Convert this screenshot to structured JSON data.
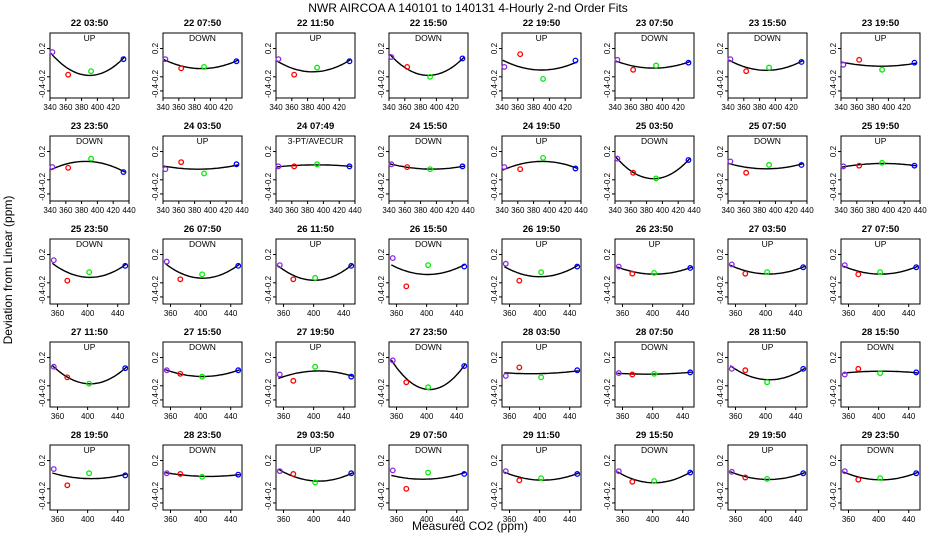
{
  "title": "NWR   AIRCOA A   140101 to 140131   4-Hourly 2-nd Order Fits",
  "xlabel": "Measured CO2 (ppm)",
  "ylabel": "Deviation from Linear (ppm)",
  "colors": {
    "curve": "#000000",
    "low": "#8a2be2",
    "mid_low": "#ff0000",
    "mid": "#00ee00",
    "high": "#0000ff"
  },
  "chart_data": {
    "type": "scatter",
    "ylim": [
      -0.5,
      0.42
    ],
    "yticks": [
      0.2,
      -0.2,
      -0.4
    ],
    "rows": [
      {
        "xlim": [
          340,
          440
        ],
        "xticks": [
          340,
          360,
          380,
          400,
          420
        ]
      },
      {
        "xlim": [
          340,
          440
        ],
        "xticks": [
          340,
          360,
          380,
          400,
          420,
          440
        ]
      },
      {
        "xlim": [
          350,
          455
        ],
        "xticks": [
          360,
          400,
          440
        ]
      },
      {
        "xlim": [
          350,
          455
        ],
        "xticks": [
          360,
          400,
          440
        ]
      },
      {
        "xlim": [
          350,
          455
        ],
        "xticks": [
          360,
          400,
          440
        ]
      }
    ],
    "panels": [
      {
        "label": "22 03:50",
        "mode": "UP",
        "x": [
          343,
          363,
          392,
          433
        ],
        "y": [
          0.15,
          -0.17,
          -0.12,
          0.05
        ]
      },
      {
        "label": "22 07:50",
        "mode": "DOWN",
        "x": [
          343,
          363,
          392,
          433
        ],
        "y": [
          0.05,
          -0.08,
          -0.06,
          0.02
        ]
      },
      {
        "label": "22 11:50",
        "mode": "UP",
        "x": [
          343,
          363,
          392,
          433
        ],
        "y": [
          0.05,
          -0.17,
          -0.07,
          0.02
        ]
      },
      {
        "label": "22 15:50",
        "mode": "DOWN",
        "x": [
          343,
          363,
          392,
          433
        ],
        "y": [
          0.08,
          -0.06,
          -0.2,
          0.06
        ]
      },
      {
        "label": "22 19:50",
        "mode": "UP",
        "x": [
          343,
          363,
          392,
          433
        ],
        "y": [
          -0.06,
          0.12,
          -0.23,
          0.03
        ]
      },
      {
        "label": "23 07:50",
        "mode": "DOWN",
        "x": [
          343,
          363,
          392,
          433
        ],
        "y": [
          0.04,
          -0.1,
          -0.04,
          0.0
        ]
      },
      {
        "label": "23 15:50",
        "mode": "DOWN",
        "x": [
          343,
          363,
          392,
          433
        ],
        "y": [
          0.05,
          -0.12,
          -0.07,
          0.01
        ]
      },
      {
        "label": "23 19:50",
        "mode": "UP",
        "x": [
          343,
          363,
          392,
          433
        ],
        "y": [
          -0.03,
          0.04,
          -0.1,
          0.0
        ]
      },
      {
        "label": "23 23:50",
        "mode": "DOWN",
        "x": [
          343,
          363,
          392,
          433
        ],
        "y": [
          -0.02,
          -0.03,
          0.1,
          -0.09
        ]
      },
      {
        "label": "24 03:50",
        "mode": "UP",
        "x": [
          343,
          363,
          392,
          433
        ],
        "y": [
          -0.05,
          0.05,
          -0.11,
          0.02
        ]
      },
      {
        "label": "24 07:49",
        "mode": "3-PT/AVECUR",
        "x": [
          343,
          363,
          392,
          433
        ],
        "y": [
          -0.01,
          -0.01,
          0.02,
          -0.01
        ]
      },
      {
        "label": "24 15:50",
        "mode": "DOWN",
        "x": [
          343,
          363,
          392,
          433
        ],
        "y": [
          0.02,
          -0.02,
          -0.05,
          -0.01
        ]
      },
      {
        "label": "24 19:50",
        "mode": "UP",
        "x": [
          343,
          363,
          392,
          433
        ],
        "y": [
          -0.02,
          -0.05,
          0.11,
          -0.04
        ]
      },
      {
        "label": "25 03:50",
        "mode": "DOWN",
        "x": [
          343,
          363,
          392,
          433
        ],
        "y": [
          0.1,
          -0.1,
          -0.18,
          0.08
        ]
      },
      {
        "label": "25 07:50",
        "mode": "DOWN",
        "x": [
          343,
          363,
          392,
          433
        ],
        "y": [
          0.06,
          -0.1,
          0.01,
          0.01
        ]
      },
      {
        "label": "25 19:50",
        "mode": "UP",
        "x": [
          343,
          363,
          392,
          433
        ],
        "y": [
          -0.01,
          0.0,
          0.04,
          0.0
        ]
      },
      {
        "label": "25 23:50",
        "mode": "DOWN",
        "x": [
          355,
          373,
          402,
          450
        ],
        "y": [
          0.12,
          -0.17,
          -0.05,
          0.04
        ]
      },
      {
        "label": "26 07:50",
        "mode": "DOWN",
        "x": [
          355,
          373,
          402,
          450
        ],
        "y": [
          0.1,
          -0.15,
          -0.08,
          0.04
        ]
      },
      {
        "label": "26 11:50",
        "mode": "UP",
        "x": [
          355,
          373,
          402,
          450
        ],
        "y": [
          0.05,
          -0.15,
          -0.13,
          0.04
        ]
      },
      {
        "label": "26 15:50",
        "mode": "DOWN",
        "x": [
          355,
          373,
          402,
          450
        ],
        "y": [
          0.15,
          -0.25,
          0.05,
          0.03
        ]
      },
      {
        "label": "26 19:50",
        "mode": "UP",
        "x": [
          355,
          373,
          402,
          450
        ],
        "y": [
          0.07,
          -0.17,
          -0.05,
          0.03
        ]
      },
      {
        "label": "26 23:50",
        "mode": "UP",
        "x": [
          355,
          373,
          402,
          450
        ],
        "y": [
          0.03,
          -0.07,
          -0.06,
          0.01
        ]
      },
      {
        "label": "27 03:50",
        "mode": "UP",
        "x": [
          355,
          373,
          402,
          450
        ],
        "y": [
          0.06,
          -0.07,
          -0.05,
          0.02
        ]
      },
      {
        "label": "27 07:50",
        "mode": "UP",
        "x": [
          355,
          373,
          402,
          450
        ],
        "y": [
          0.05,
          -0.08,
          -0.05,
          0.02
        ]
      },
      {
        "label": "27 11:50",
        "mode": "UP",
        "x": [
          355,
          373,
          402,
          450
        ],
        "y": [
          0.07,
          -0.08,
          -0.17,
          0.05
        ]
      },
      {
        "label": "27 15:50",
        "mode": "DOWN",
        "x": [
          355,
          373,
          402,
          450
        ],
        "y": [
          0.02,
          -0.03,
          -0.07,
          0.02
        ]
      },
      {
        "label": "27 19:50",
        "mode": "UP",
        "x": [
          355,
          373,
          402,
          450
        ],
        "y": [
          -0.04,
          -0.13,
          0.07,
          -0.07
        ]
      },
      {
        "label": "27 23:50",
        "mode": "DOWN",
        "x": [
          355,
          373,
          402,
          450
        ],
        "y": [
          0.16,
          -0.15,
          -0.22,
          0.08
        ]
      },
      {
        "label": "28 03:50",
        "mode": "UP",
        "x": [
          355,
          373,
          402,
          450
        ],
        "y": [
          -0.06,
          0.06,
          -0.08,
          0.02
        ]
      },
      {
        "label": "28 07:50",
        "mode": "DOWN",
        "x": [
          355,
          373,
          402,
          450
        ],
        "y": [
          -0.02,
          -0.04,
          -0.03,
          -0.01
        ]
      },
      {
        "label": "28 11:50",
        "mode": "UP",
        "x": [
          355,
          373,
          402,
          450
        ],
        "y": [
          0.04,
          0.02,
          -0.15,
          0.04
        ]
      },
      {
        "label": "28 15:50",
        "mode": "DOWN",
        "x": [
          355,
          373,
          402,
          450
        ],
        "y": [
          -0.04,
          0.04,
          -0.02,
          -0.01
        ]
      },
      {
        "label": "28 19:50",
        "mode": "UP",
        "x": [
          355,
          373,
          402,
          450
        ],
        "y": [
          0.08,
          -0.15,
          0.02,
          -0.01
        ]
      },
      {
        "label": "28 23:50",
        "mode": "DOWN",
        "x": [
          355,
          373,
          402,
          450
        ],
        "y": [
          0.02,
          0.01,
          -0.03,
          0.0
        ]
      },
      {
        "label": "29 03:50",
        "mode": "UP",
        "x": [
          355,
          373,
          402,
          450
        ],
        "y": [
          0.05,
          0.01,
          -0.11,
          0.02
        ]
      },
      {
        "label": "29 07:50",
        "mode": "DOWN",
        "x": [
          355,
          373,
          402,
          450
        ],
        "y": [
          0.06,
          -0.2,
          0.03,
          0.01
        ]
      },
      {
        "label": "29 11:50",
        "mode": "UP",
        "x": [
          355,
          373,
          402,
          450
        ],
        "y": [
          0.05,
          -0.08,
          -0.05,
          0.01
        ]
      },
      {
        "label": "29 15:50",
        "mode": "DOWN",
        "x": [
          355,
          373,
          402,
          450
        ],
        "y": [
          0.05,
          -0.1,
          -0.09,
          0.03
        ]
      },
      {
        "label": "29 19:50",
        "mode": "UP",
        "x": [
          355,
          373,
          402,
          450
        ],
        "y": [
          0.04,
          -0.04,
          -0.06,
          0.02
        ]
      },
      {
        "label": "29 23:50",
        "mode": "DOWN",
        "x": [
          355,
          373,
          402,
          450
        ],
        "y": [
          0.05,
          -0.07,
          -0.05,
          0.02
        ]
      }
    ]
  }
}
